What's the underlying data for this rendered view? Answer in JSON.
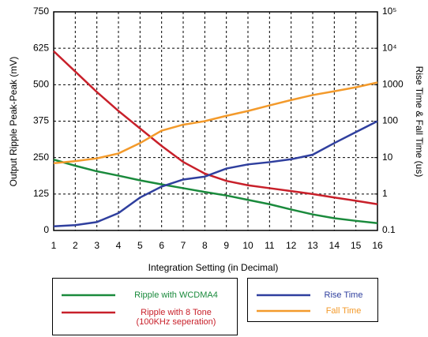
{
  "chart_data": {
    "type": "line",
    "x_label": "Integration Setting (in Decimal)",
    "y_label": "Output Ripple Peak-Peak (mV)",
    "y2_label": "Rise Time & Fall Time (us)",
    "x": [
      1,
      2,
      3,
      4,
      5,
      6,
      7,
      8,
      9,
      10,
      11,
      12,
      13,
      14,
      15,
      16
    ],
    "xlim": [
      1,
      16
    ],
    "xticks": [
      1,
      2,
      3,
      4,
      5,
      6,
      7,
      8,
      9,
      10,
      11,
      12,
      13,
      14,
      15,
      16
    ],
    "ylim": [
      0,
      750
    ],
    "yticks": [
      0,
      125,
      250,
      375,
      500,
      625,
      750
    ],
    "y2lim": [
      0.1,
      100000
    ],
    "y2log": true,
    "y2ticks": [
      0.1,
      1,
      10,
      100,
      1000,
      {
        "value": 10000,
        "label": "10⁴"
      },
      {
        "value": 100000,
        "label": "10⁵"
      }
    ],
    "grid": true,
    "series": [
      {
        "name": "Ripple with WCDMA4",
        "color": "#1a8a3c",
        "values": [
          243,
          222,
          203,
          188,
          172,
          158,
          145,
          132,
          120,
          105,
          90,
          72,
          55,
          42,
          33,
          25
        ]
      },
      {
        "name": "Ripple with 8 Tone\n(100KHz seperation)",
        "color": "#c8202a",
        "values": [
          615,
          545,
          475,
          410,
          350,
          290,
          235,
          195,
          170,
          155,
          145,
          135,
          125,
          113,
          102,
          90
        ]
      },
      {
        "name": "Rise Time",
        "color": "#2f3f9e",
        "axis": "y2",
        "values": [
          0.13,
          0.14,
          0.17,
          0.3,
          0.8,
          1.6,
          2.5,
          3,
          5,
          6.5,
          7.5,
          9,
          12,
          25,
          50,
          100
        ]
      },
      {
        "name": "Fall Time",
        "color": "#f39a2b",
        "axis": "y2",
        "values": [
          7,
          8,
          9.5,
          13,
          25,
          55,
          80,
          100,
          140,
          190,
          270,
          380,
          520,
          660,
          850,
          1150
        ]
      }
    ]
  }
}
